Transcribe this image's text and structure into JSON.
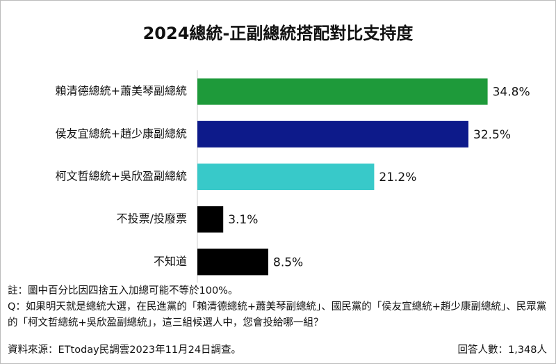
{
  "chart_data": {
    "type": "bar",
    "orientation": "horizontal",
    "title": "2024總統-正副總統搭配對比支持度",
    "categories": [
      "賴清德總統+蕭美琴副總統",
      "侯友宜總統+趙少康副總統",
      "柯文哲總統+吳欣盈副總統",
      "不投票/投廢票",
      "不知道"
    ],
    "values": [
      34.8,
      32.5,
      21.2,
      3.1,
      8.5
    ],
    "value_labels": [
      "34.8%",
      "32.5%",
      "21.2%",
      "3.1%",
      "8.5%"
    ],
    "colors": [
      "#1e9a3a",
      "#0d1a8a",
      "#38c9c9",
      "#000000",
      "#000000"
    ],
    "note": "註：圖中百分比因四捨五入加總可能不等於100%。",
    "question": "Q：如果明天就是總統大選，在民進黨的「賴清德總統+蕭美琴副總統」、國民黨的「侯友宜總統+趙少康副總統」、民眾黨的「柯文哲總統+吳欣盈副總統」，這三組候選人中，您會投給哪一組？",
    "source": "資料來源：ETtoday民調雲2023年11月24日調查。",
    "sample": "回答人數：1,348人"
  }
}
